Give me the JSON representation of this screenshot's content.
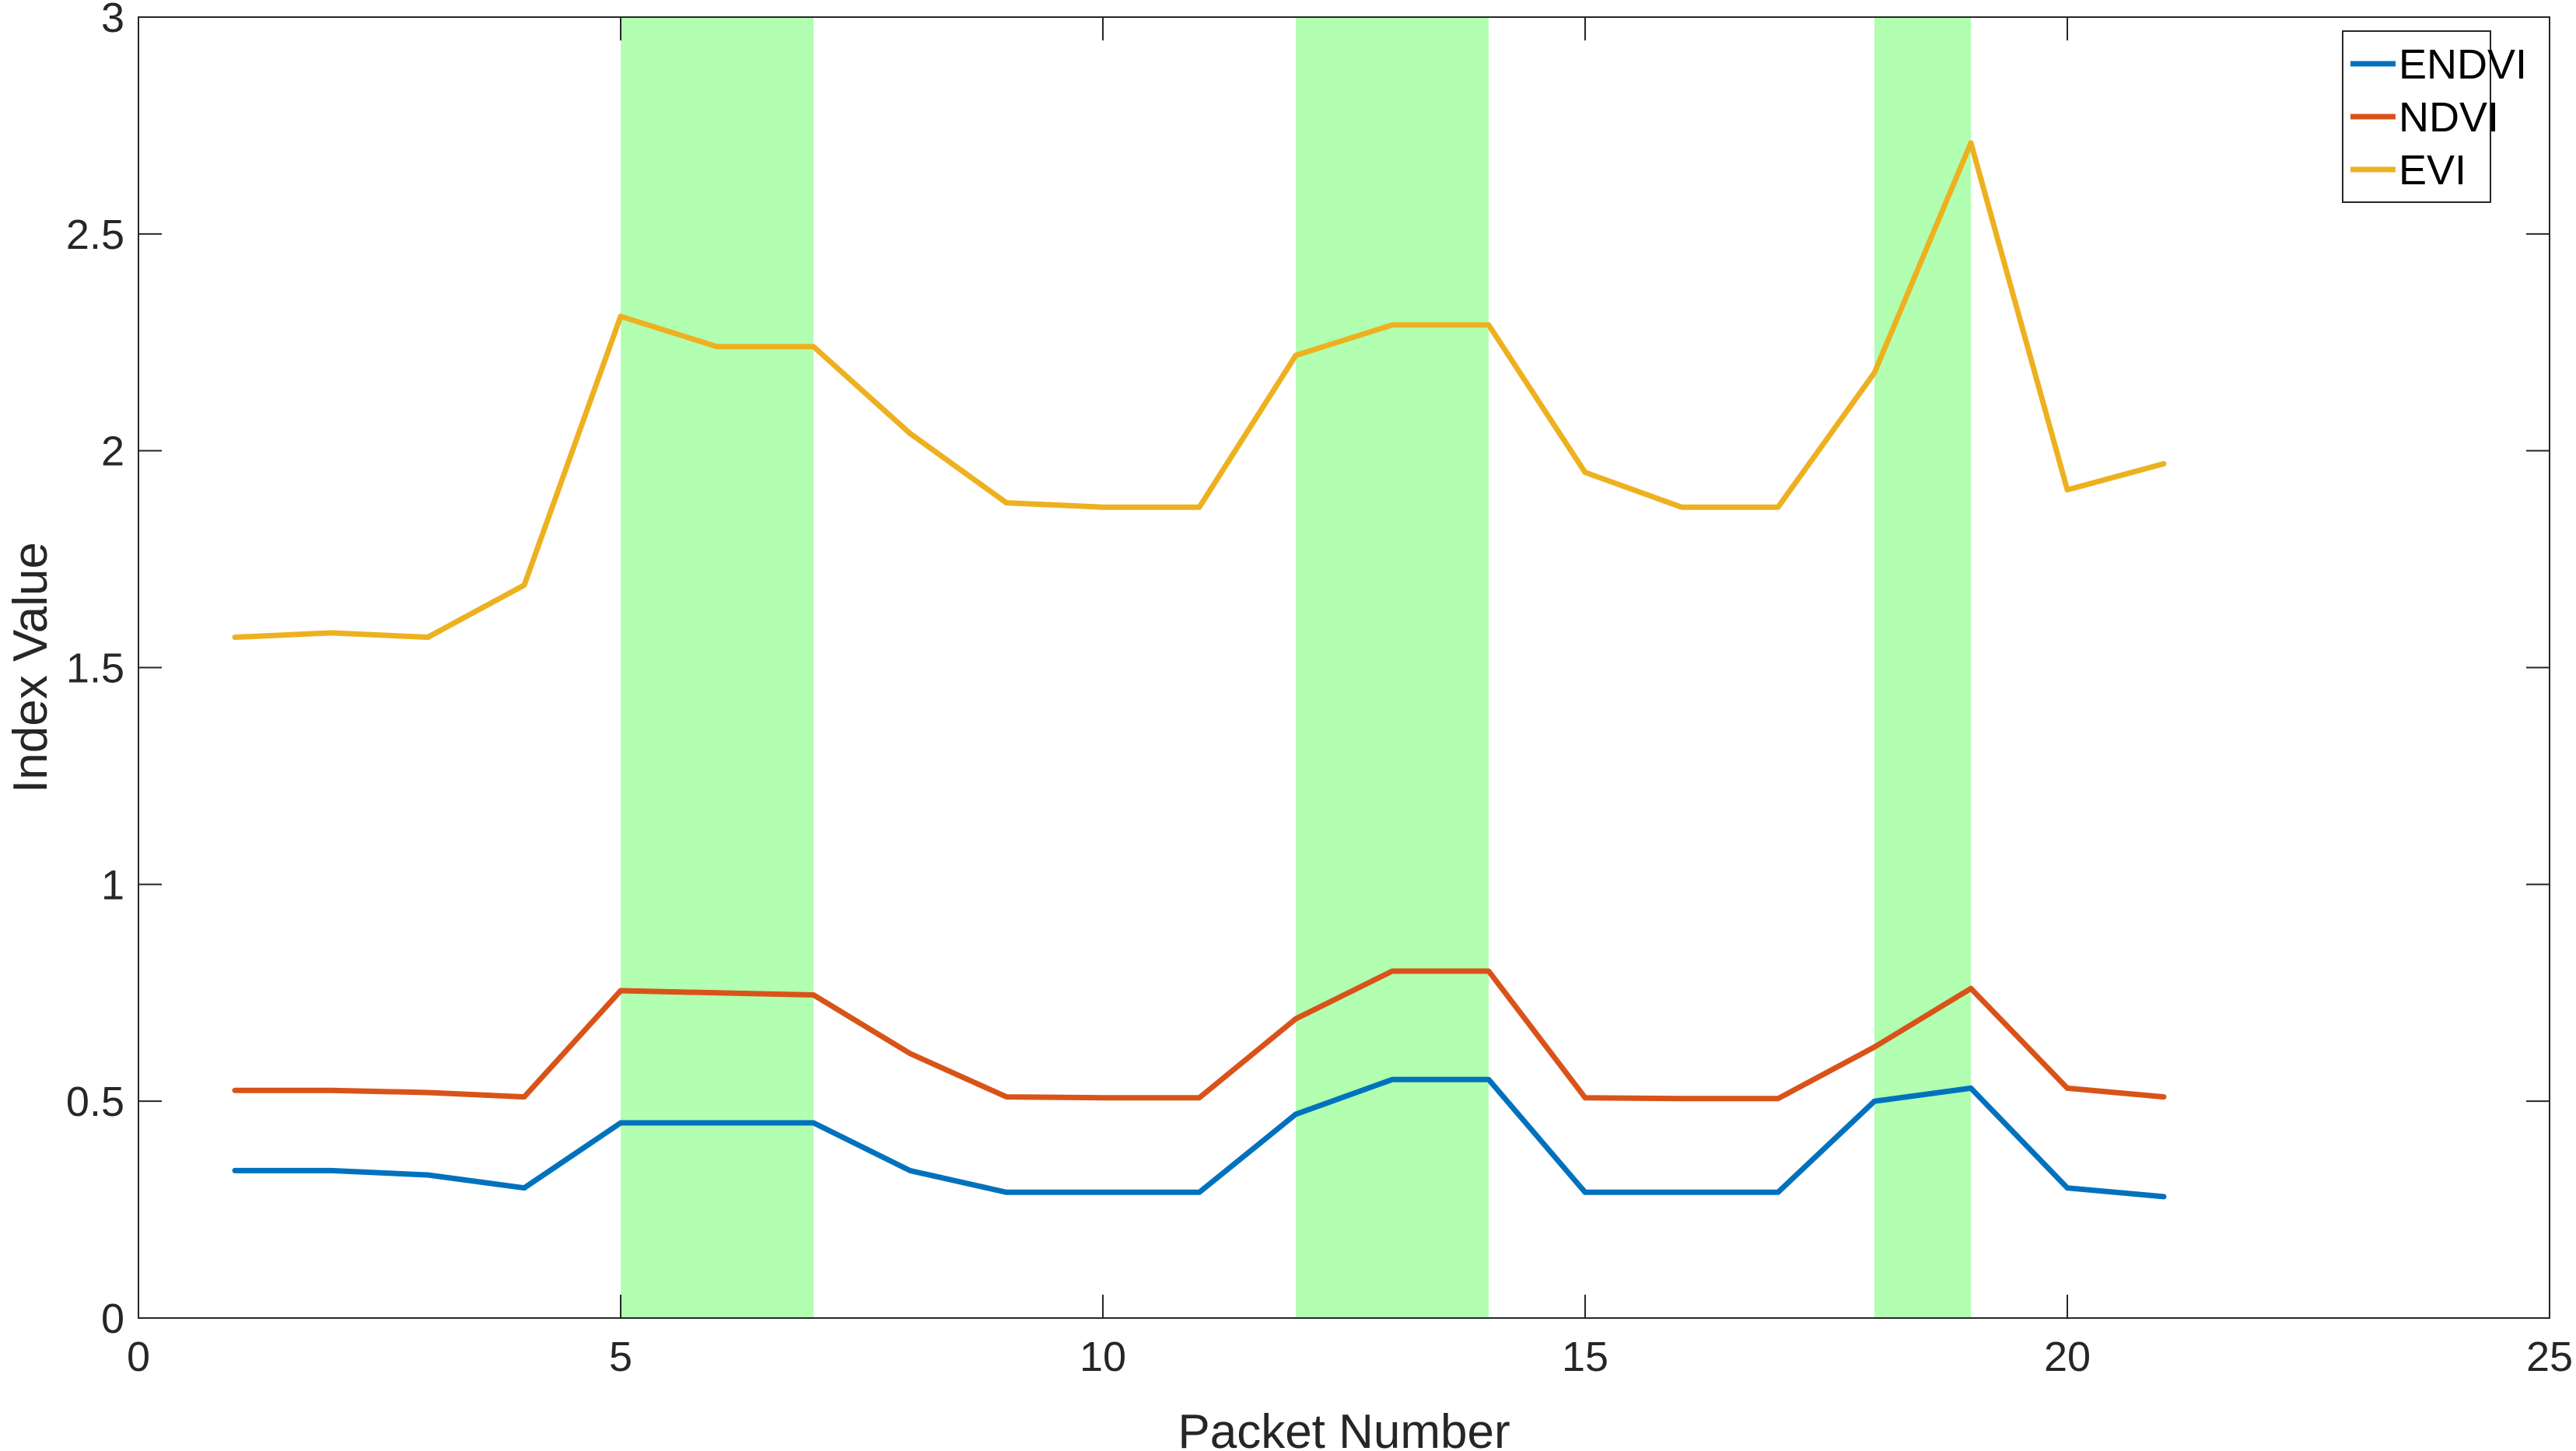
{
  "chart_data": {
    "type": "line",
    "title": "",
    "xlabel": "Packet Number",
    "ylabel": "Index Value",
    "xlim": [
      0,
      25
    ],
    "ylim": [
      0,
      3
    ],
    "xticks": [
      0,
      5,
      10,
      15,
      20,
      25
    ],
    "yticks": [
      0,
      0.5,
      1,
      1.5,
      2,
      2.5,
      3
    ],
    "xtick_labels": [
      "0",
      "5",
      "10",
      "15",
      "20",
      "25"
    ],
    "ytick_labels": [
      "0",
      "0.5",
      "1",
      "1.5",
      "2",
      "2.5",
      "3"
    ],
    "grid": false,
    "legend_position": "top-right",
    "x": [
      1,
      2,
      3,
      4,
      5,
      6,
      7,
      8,
      9,
      10,
      11,
      12,
      13,
      14,
      15,
      16,
      17,
      18,
      19,
      20,
      21
    ],
    "series": [
      {
        "name": "ENDVI",
        "color": "#0072BD",
        "values": [
          0.34,
          0.34,
          0.33,
          0.3,
          0.45,
          0.45,
          0.45,
          0.34,
          0.29,
          0.29,
          0.29,
          0.47,
          0.55,
          0.55,
          0.29,
          0.29,
          0.29,
          0.5,
          0.53,
          0.3,
          0.28
        ]
      },
      {
        "name": "NDVI",
        "color": "#D95319",
        "values": [
          0.525,
          0.525,
          0.52,
          0.51,
          0.755,
          0.75,
          0.745,
          0.61,
          0.51,
          0.508,
          0.508,
          0.69,
          0.8,
          0.8,
          0.508,
          0.506,
          0.506,
          0.625,
          0.76,
          0.53,
          0.51
        ]
      },
      {
        "name": "EVI",
        "color": "#EDB120",
        "values": [
          1.57,
          1.58,
          1.57,
          1.69,
          2.31,
          2.24,
          2.24,
          2.04,
          1.88,
          1.87,
          1.87,
          2.22,
          2.29,
          2.29,
          1.95,
          1.87,
          1.87,
          2.18,
          2.71,
          1.91,
          1.97
        ]
      }
    ],
    "shaded_regions": [
      {
        "x_start": 5,
        "x_end": 7,
        "color": "#00FF00",
        "opacity": 0.3
      },
      {
        "x_start": 12,
        "x_end": 14,
        "color": "#00FF00",
        "opacity": 0.3
      },
      {
        "x_start": 18,
        "x_end": 19,
        "color": "#00FF00",
        "opacity": 0.3
      }
    ]
  }
}
